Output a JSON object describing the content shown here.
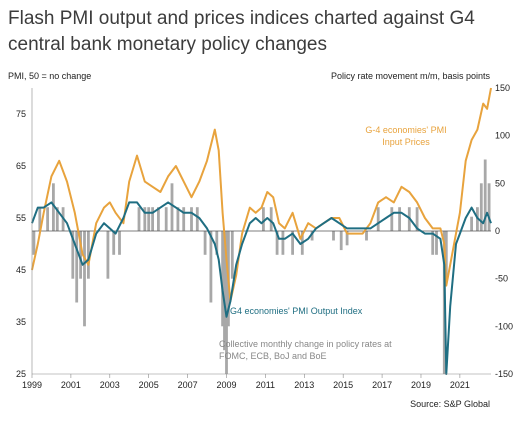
{
  "title_line1": "Flash PMI output and prices indices charted against G4",
  "title_line2": "central bank monetary policy changes",
  "left_axis_label": "PMI, 50 = no change",
  "right_axis_label": "Policy rate movement m/m, basis points",
  "source": "Source: S&P Global",
  "annotations": {
    "input_prices_line1": "G-4 economies' PMI",
    "input_prices_line2": "Input Prices",
    "output_index": "G4 economies' PMI Output Index",
    "policy_line1": "Collective monthly change in policy rates at",
    "policy_line2": "FOMC, ECB, BoJ and BoE"
  },
  "colors": {
    "input_prices": "#E8A33D",
    "output_index": "#1F6E82",
    "policy_bars": "#A8A8A8",
    "zero_line": "#555555",
    "title": "#3c3c3c"
  },
  "chart_data": {
    "type": "line",
    "title": "Flash PMI output and prices indices charted against G4 central bank monetary policy changes",
    "ylabel": "PMI, 50 = no change",
    "y2label": "Policy rate movement m/m, basis points",
    "ylim": [
      25,
      80
    ],
    "y2lim": [
      -150,
      150
    ],
    "yticks": [
      25,
      35,
      45,
      55,
      65,
      75
    ],
    "y2ticks": [
      -150,
      -100,
      -50,
      0,
      50,
      100,
      150
    ],
    "xlim": [
      1999.0,
      2022.6
    ],
    "xticks": [
      "1999",
      "2001",
      "2003",
      "2005",
      "2007",
      "2009",
      "2011",
      "2013",
      "2015",
      "2017",
      "2019",
      "2021"
    ],
    "grid": false,
    "legend": "inline annotations",
    "series": [
      {
        "name": "G-4 economies' PMI Input Prices",
        "axis": "left",
        "type": "line",
        "x": [
          1999.0,
          1999.3,
          1999.6,
          2000.0,
          2000.4,
          2000.8,
          2001.2,
          2001.6,
          2001.9,
          2002.3,
          2002.7,
          2003.0,
          2003.3,
          2003.7,
          2004.0,
          2004.4,
          2004.8,
          2005.2,
          2005.6,
          2006.0,
          2006.4,
          2006.8,
          2007.2,
          2007.6,
          2008.0,
          2008.4,
          2008.6,
          2008.8,
          2009.0,
          2009.2,
          2009.5,
          2009.8,
          2010.2,
          2010.5,
          2010.8,
          2011.1,
          2011.4,
          2011.7,
          2012.0,
          2012.4,
          2012.8,
          2013.2,
          2013.6,
          2014.0,
          2014.4,
          2014.8,
          2015.2,
          2015.6,
          2016.0,
          2016.4,
          2016.8,
          2017.2,
          2017.6,
          2018.0,
          2018.4,
          2018.8,
          2019.2,
          2019.6,
          2020.0,
          2020.2,
          2020.3,
          2020.5,
          2020.8,
          2021.0,
          2021.3,
          2021.6,
          2021.9,
          2022.2,
          2022.4,
          2022.6
        ],
        "y": [
          45,
          50,
          56,
          63,
          66,
          62,
          56,
          48,
          46,
          54,
          57,
          58,
          56,
          54,
          62,
          67,
          62,
          61,
          60,
          63,
          65,
          62,
          59,
          62,
          66,
          72,
          68,
          56,
          47,
          39,
          44,
          52,
          57,
          56,
          57,
          60,
          59,
          54,
          53,
          56,
          51,
          54,
          53,
          54,
          55,
          55,
          52,
          52,
          52,
          54,
          58,
          59,
          58,
          61,
          60,
          58,
          55,
          53,
          53,
          50,
          42,
          46,
          52,
          56,
          66,
          70,
          72,
          77,
          76,
          80
        ]
      },
      {
        "name": "G4 economies' PMI Output Index",
        "axis": "left",
        "type": "line",
        "x": [
          1999.0,
          1999.3,
          1999.6,
          2000.0,
          2000.4,
          2000.8,
          2001.2,
          2001.6,
          2001.9,
          2002.3,
          2002.7,
          2003.0,
          2003.3,
          2003.7,
          2004.0,
          2004.4,
          2004.8,
          2005.2,
          2005.6,
          2006.0,
          2006.4,
          2006.8,
          2007.2,
          2007.6,
          2008.0,
          2008.4,
          2008.6,
          2008.8,
          2009.0,
          2009.2,
          2009.5,
          2009.8,
          2010.2,
          2010.5,
          2010.8,
          2011.1,
          2011.4,
          2011.7,
          2012.0,
          2012.4,
          2012.8,
          2013.2,
          2013.6,
          2014.0,
          2014.4,
          2014.8,
          2015.2,
          2015.6,
          2016.0,
          2016.4,
          2016.8,
          2017.2,
          2017.6,
          2018.0,
          2018.4,
          2018.8,
          2019.2,
          2019.6,
          2020.0,
          2020.2,
          2020.3,
          2020.5,
          2020.8,
          2021.0,
          2021.3,
          2021.6,
          2021.9,
          2022.2,
          2022.4,
          2022.6
        ],
        "y": [
          54,
          57,
          57,
          58,
          56,
          54,
          50,
          46,
          47,
          52,
          54,
          53,
          52,
          55,
          58,
          58,
          56,
          56,
          57,
          58,
          57,
          56,
          56,
          55,
          53,
          50,
          47,
          41,
          36,
          39,
          46,
          50,
          54,
          55,
          54,
          55,
          54,
          51,
          51,
          52,
          50,
          51,
          53,
          54,
          55,
          54,
          53,
          53,
          53,
          53,
          54,
          55,
          56,
          56,
          55,
          53,
          52,
          52,
          51,
          46,
          25,
          38,
          50,
          52,
          55,
          57,
          55,
          54,
          56,
          54
        ]
      },
      {
        "name": "Collective monthly change in policy rates at FOMC, ECB, BoJ and BoE",
        "axis": "right",
        "type": "bar",
        "x": [
          1999.1,
          1999.4,
          1999.8,
          2000.1,
          2000.3,
          2000.6,
          2001.1,
          2001.3,
          2001.5,
          2001.7,
          2001.9,
          2002.9,
          2003.2,
          2003.5,
          2004.5,
          2004.8,
          2005.0,
          2005.2,
          2005.5,
          2005.9,
          2006.2,
          2006.5,
          2006.8,
          2007.2,
          2007.5,
          2007.9,
          2008.2,
          2008.5,
          2008.8,
          2008.9,
          2009.0,
          2009.1,
          2009.3,
          2010.9,
          2011.3,
          2011.6,
          2011.9,
          2012.4,
          2012.9,
          2013.4,
          2014.5,
          2014.9,
          2015.2,
          2016.2,
          2016.8,
          2017.5,
          2017.9,
          2018.4,
          2018.8,
          2019.6,
          2019.8,
          2020.2,
          2020.3,
          2021.6,
          2021.9,
          2022.1,
          2022.3,
          2022.5
        ],
        "y": [
          -25,
          25,
          25,
          50,
          25,
          25,
          -50,
          -75,
          -50,
          -100,
          -50,
          -50,
          -25,
          -25,
          25,
          25,
          25,
          25,
          25,
          25,
          50,
          25,
          25,
          25,
          25,
          -25,
          -75,
          -25,
          -100,
          -125,
          -150,
          -100,
          -50,
          25,
          25,
          -25,
          -25,
          -25,
          -25,
          -10,
          -10,
          -20,
          -15,
          -10,
          25,
          25,
          25,
          25,
          25,
          -25,
          -25,
          -150,
          -50,
          15,
          25,
          50,
          75,
          50
        ]
      }
    ]
  }
}
